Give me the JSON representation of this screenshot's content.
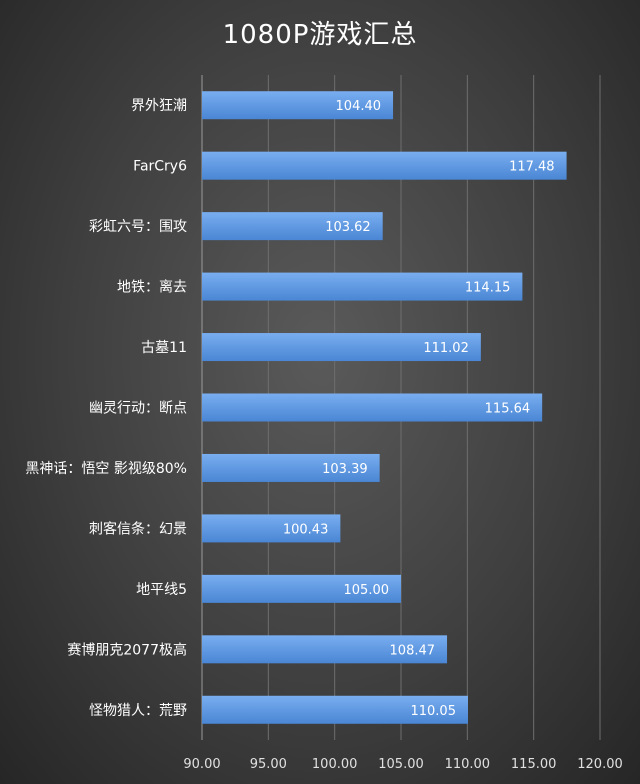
{
  "chart_data": {
    "type": "bar",
    "orientation": "horizontal",
    "title": "1080P游戏汇总",
    "categories": [
      "界外狂潮",
      "FarCry6",
      "彩虹六号：围攻",
      "地铁：离去",
      "古墓11",
      "幽灵行动：断点",
      "黑神话：悟空 影视级80%",
      "刺客信条：幻景",
      "地平线5",
      "赛博朋克2077极高",
      "怪物猎人：荒野"
    ],
    "values": [
      104.4,
      117.48,
      103.62,
      114.15,
      111.02,
      115.64,
      103.39,
      100.43,
      105.0,
      108.47,
      110.05
    ],
    "value_labels": [
      "104.40",
      "117.48",
      "103.62",
      "114.15",
      "111.02",
      "115.64",
      "103.39",
      "100.43",
      "105.00",
      "108.47",
      "110.05"
    ],
    "xlim": [
      90,
      120
    ],
    "xticks": [
      "90.00",
      "95.00",
      "100.00",
      "105.00",
      "110.00",
      "115.00",
      "120.00"
    ],
    "xlabel": "",
    "ylabel": "",
    "grid": true,
    "legend": "none",
    "bar_color": "#4a86d4",
    "bar_color_light": "#79aef0"
  }
}
